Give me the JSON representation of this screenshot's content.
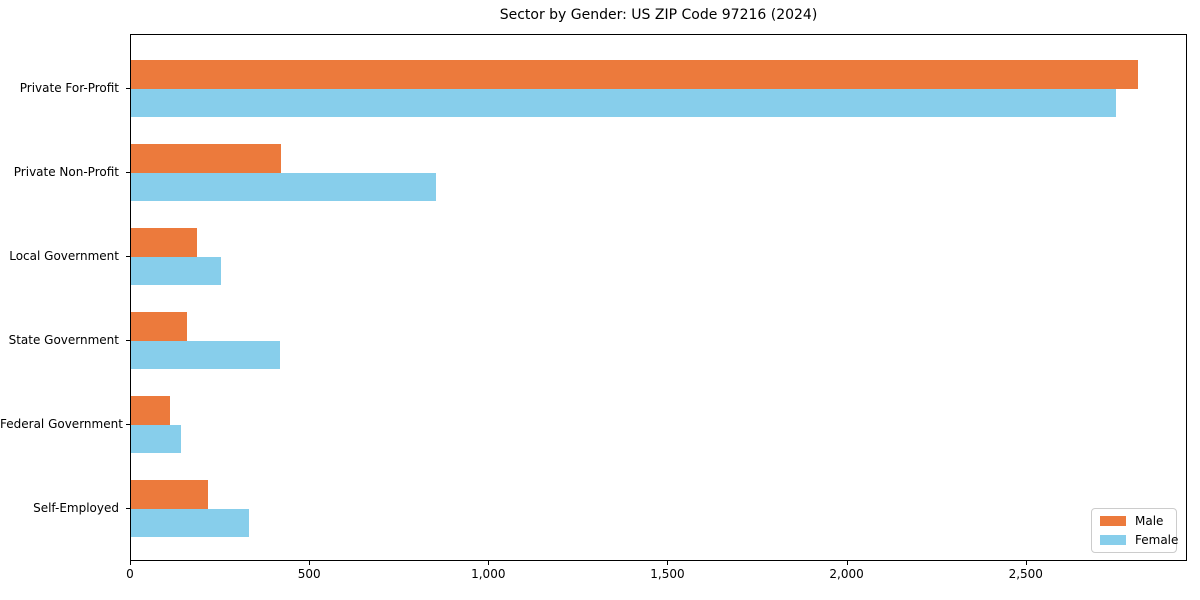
{
  "chart_data": {
    "type": "bar",
    "orientation": "horizontal",
    "title": "Sector by Gender: US ZIP Code 97216 (2024)",
    "xlabel": "",
    "ylabel": "",
    "categories": [
      "Private For-Profit",
      "Private Non-Profit",
      "Local Government",
      "State Government",
      "Federal Government",
      "Self-Employed"
    ],
    "series": [
      {
        "name": "Male",
        "color": "#EC7A3C",
        "values": [
          2810,
          420,
          185,
          155,
          110,
          215
        ]
      },
      {
        "name": "Female",
        "color": "#87CEEB",
        "values": [
          2750,
          850,
          250,
          415,
          140,
          330
        ]
      }
    ],
    "xlim": [
      0,
      2950
    ],
    "xticks": {
      "values": [
        0,
        500,
        1000,
        1500,
        2000,
        2500
      ],
      "labels": [
        "0",
        "500",
        "1,000",
        "1,500",
        "2,000",
        "2,500"
      ]
    },
    "legend_position": "lower right",
    "grid": false
  }
}
